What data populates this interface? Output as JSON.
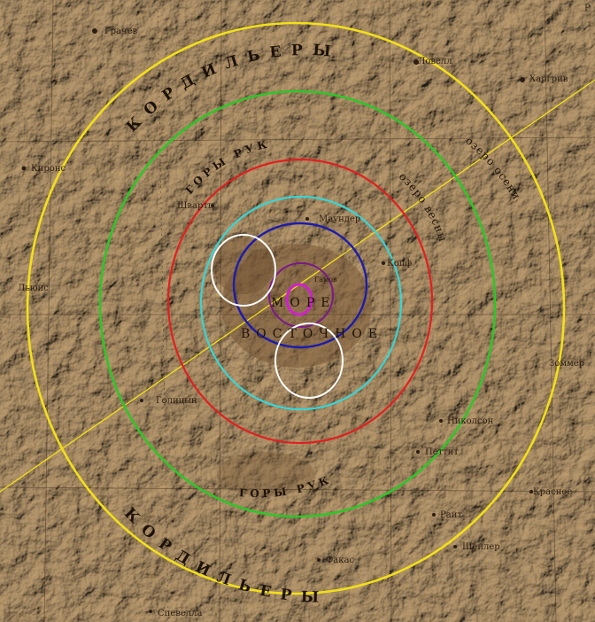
{
  "map": {
    "labels": {
      "grachev": "Грачев",
      "kiron": "Киронс",
      "lyuis": "Льюис",
      "hargrive": "Харгрив",
      "lovell": "Ловелл",
      "shvarts": "Швартц",
      "maunder": "Маундер",
      "kopf": "Копф",
      "gamov": "Гамов",
      "golitsyn": "Голицын",
      "nikolson": "Николсон",
      "pettit": "Петтит",
      "krasnoye": "Красное",
      "rait": "Райт",
      "sheiler": "Шейлер",
      "fakas": "Факас",
      "shpetelnaya": "Спевелла",
      "zeimann": "Зоммер",
      "corner": "Р"
    },
    "arc_labels": {
      "cordillera_top": "КОРДИЛЬЕРЫ",
      "cordillera_bottom": "КОРДИЛЬЕРЫ",
      "rook_top": "ГОРЫ РУК",
      "rook_bottom": "ГОРЫ РУК",
      "inner_rook": "озеро весны",
      "autumn_lake": "озеро осени"
    },
    "mare": {
      "line1": "МОРЕ",
      "line2": "ВОСТОЧНОЕ"
    },
    "ring_colors": {
      "yellow": "#f2e01a",
      "green": "#2fc52a",
      "red": "#e02020",
      "cyan": "#3ad4d4",
      "blue": "#1c1caa",
      "purple": "#7a1a8a",
      "magenta": "#d020d0",
      "white": "#ffffff",
      "background": "#b79a6e"
    }
  }
}
